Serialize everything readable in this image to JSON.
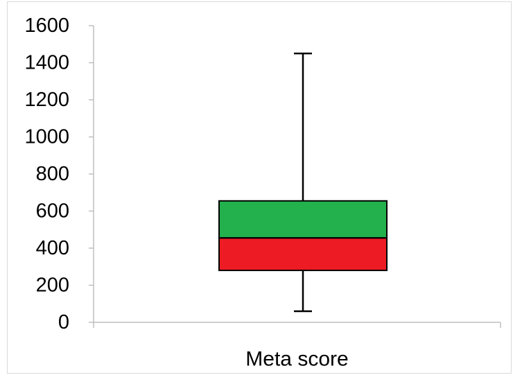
{
  "chart_data": {
    "type": "box",
    "categories": [
      "Meta score"
    ],
    "ylim": [
      0,
      1600
    ],
    "y_ticks": [
      0,
      200,
      400,
      600,
      800,
      1000,
      1200,
      1400,
      1600
    ],
    "y_tick_labels": [
      "0",
      "200",
      "400",
      "600",
      "800",
      "1000",
      "1200",
      "1400",
      "1600"
    ],
    "series": [
      {
        "min": 60,
        "q1": 280,
        "median": 455,
        "q3": 655,
        "max": 1450
      }
    ],
    "colors": {
      "lower_box": "#ed1c24",
      "upper_box": "#22b14c",
      "outline": "#000000",
      "axis": "#bfbfbf"
    },
    "grid": false,
    "legend": "none"
  }
}
